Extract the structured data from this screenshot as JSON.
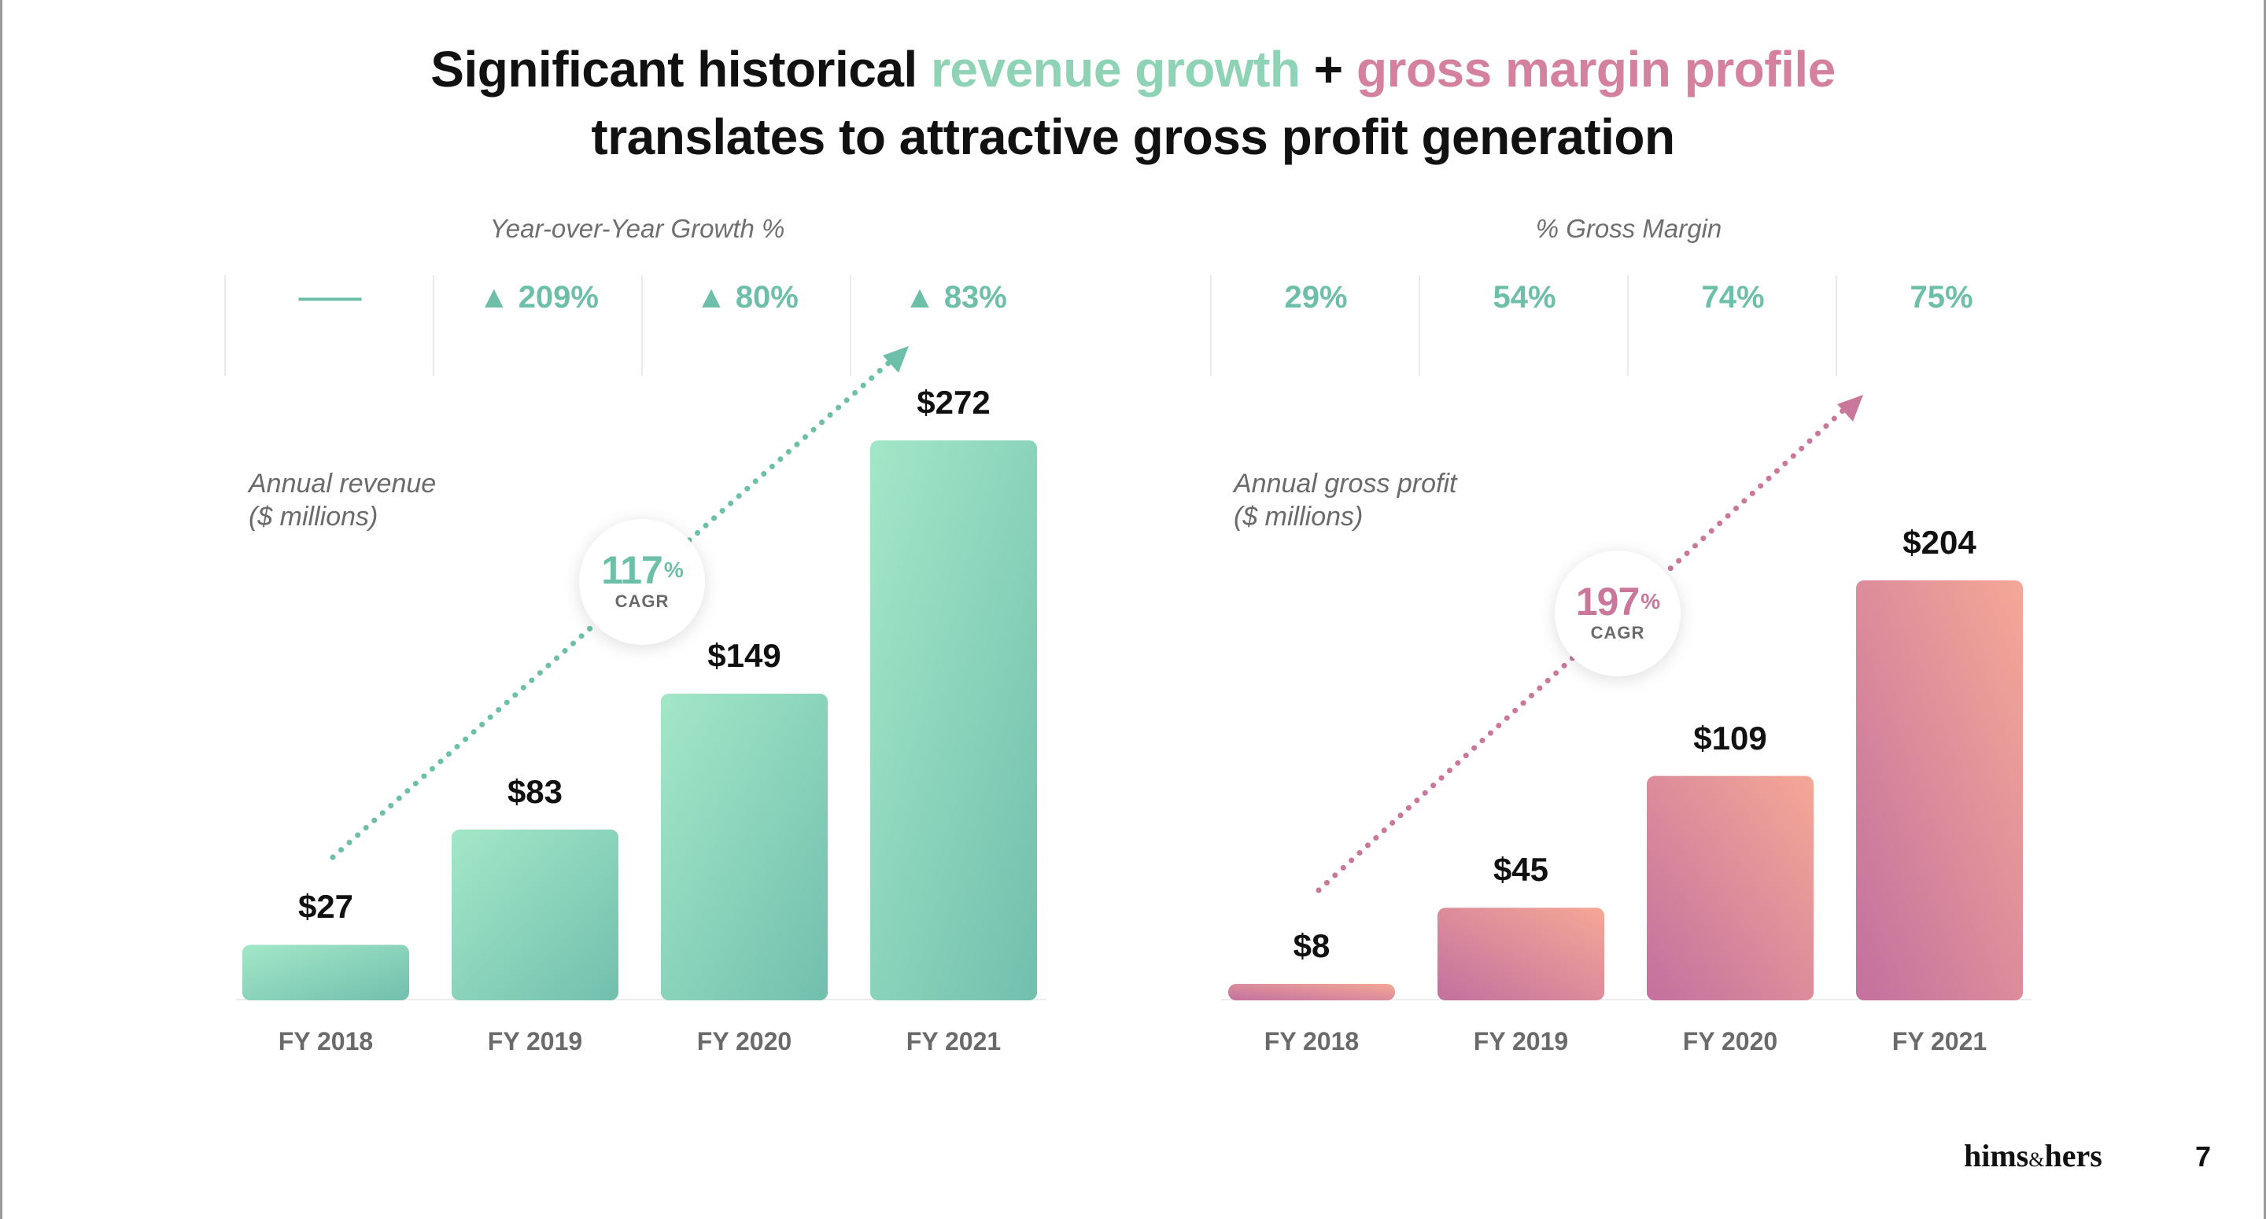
{
  "title": {
    "line1_part1": "Significant historical ",
    "line1_accent1": "revenue growth",
    "line1_plus": " + ",
    "line1_accent2": "gross margin profile",
    "line2": "translates to attractive gross profit generation"
  },
  "colors": {
    "teal_accent": "#6dbfa9",
    "teal_light": "#a3e7c8",
    "teal_dark": "#72bfae",
    "pink_accent": "#c9789c",
    "pink_light": "#f5a896",
    "pink_dark": "#c3709f"
  },
  "left_panel": {
    "section_label": "Year-over-Year Growth %",
    "stats": [
      "——",
      "▲ 209%",
      "▲ 80%",
      "▲ 83%"
    ],
    "ylabel_line1": "Annual revenue",
    "ylabel_line2": "($ millions)",
    "cagr_value": "117",
    "cagr_pct": "%",
    "cagr_label": "CAGR"
  },
  "right_panel": {
    "section_label": "% Gross Margin",
    "stats": [
      "29%",
      "54%",
      "74%",
      "75%"
    ],
    "ylabel_line1": "Annual gross profit",
    "ylabel_line2": "($ millions)",
    "cagr_value": "197",
    "cagr_pct": "%",
    "cagr_label": "CAGR"
  },
  "chart_data": [
    {
      "type": "bar",
      "categories": [
        "FY 2018",
        "FY 2019",
        "FY 2020",
        "FY 2021"
      ],
      "values": [
        27,
        83,
        149,
        272
      ],
      "data_labels": [
        "$27",
        "$83",
        "$149",
        "$272"
      ],
      "ylabel": "Annual revenue ($ millions)",
      "annotation": "117% CAGR"
    },
    {
      "type": "bar",
      "categories": [
        "FY 2018",
        "FY 2019",
        "FY 2020",
        "FY 2021"
      ],
      "values": [
        8,
        45,
        109,
        204
      ],
      "data_labels": [
        "$8",
        "$45",
        "$109",
        "$204"
      ],
      "ylabel": "Annual gross profit ($ millions)",
      "annotation": "197% CAGR"
    }
  ],
  "footer": {
    "logo_part1": "hims",
    "logo_amp": "&",
    "logo_part2": "hers",
    "page_number": "7"
  }
}
